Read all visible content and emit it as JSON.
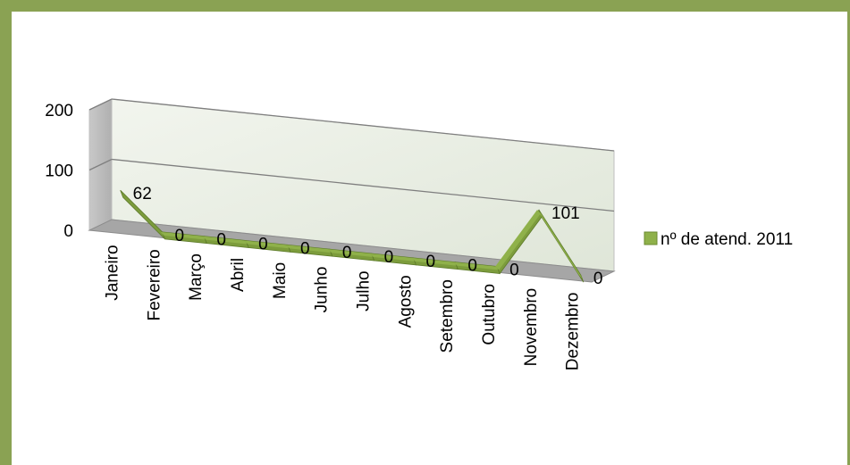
{
  "chart_data": {
    "type": "line",
    "style": "3d",
    "categories": [
      "Janeiro",
      "Fevereiro",
      "Março",
      "Abril",
      "Maio",
      "Junho",
      "Julho",
      "Agosto",
      "Setembro",
      "Outubro",
      "Novembro",
      "Dezembro"
    ],
    "series": [
      {
        "name": "nº de atend. 2011",
        "values": [
          62,
          0,
          0,
          0,
          0,
          0,
          0,
          0,
          0,
          0,
          101,
          0
        ],
        "color": "#8fb14a"
      }
    ],
    "y_ticks": [
      "0",
      "100",
      "200"
    ],
    "ylim": [
      0,
      200
    ],
    "grid": true,
    "legend_position": "right",
    "colors": {
      "frame": "#8aa253",
      "wall": "#e6eddf",
      "floor": "#a6a6a6",
      "gridline": "#7f7f7f"
    }
  }
}
